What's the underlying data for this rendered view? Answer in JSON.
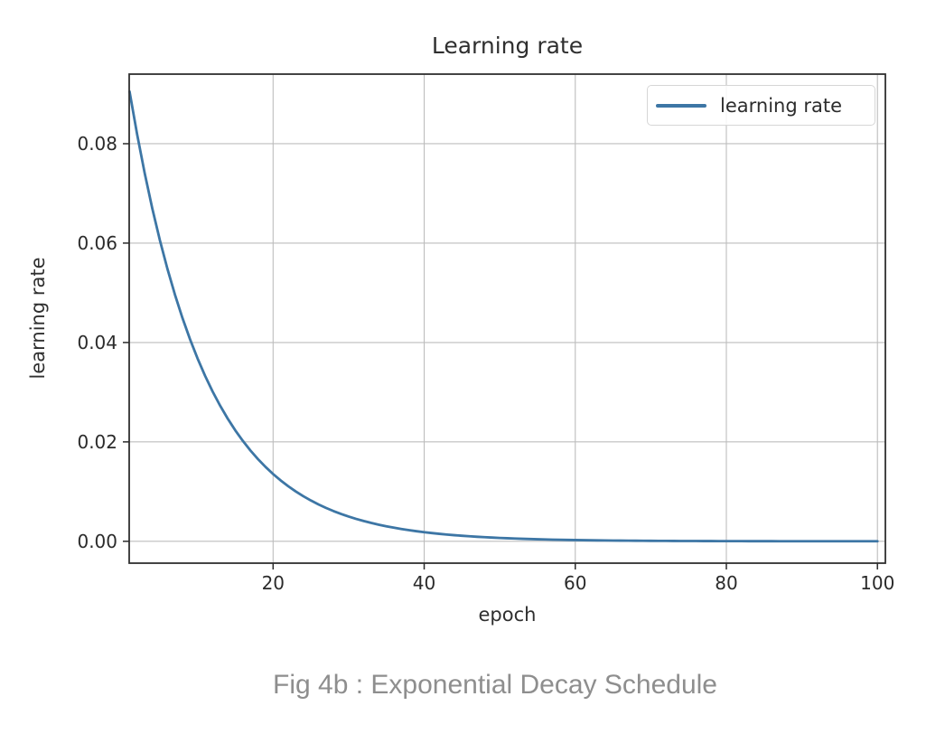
{
  "figure": {
    "title": "Learning rate",
    "xlabel": "epoch",
    "ylabel": "learning rate",
    "legend_label": "learning rate",
    "caption": "Fig 4b : Exponential Decay Schedule"
  },
  "colors": {
    "line": "#3d76a5",
    "grid": "#bdbdbd",
    "spine": "#303030",
    "tick": "#2b2b2b",
    "tick_label": "#2b2b2b",
    "caption": "#8e8e8e",
    "legend_border": "#d6d6d6",
    "background": "#ffffff"
  },
  "chart_data": {
    "type": "line",
    "title": "Learning rate",
    "xlabel": "epoch",
    "ylabel": "learning rate",
    "legend_entries": [
      "learning rate"
    ],
    "legend_position": "upper right",
    "grid": true,
    "xlim": [
      0.95,
      101.05
    ],
    "ylim": [
      -0.0044,
      0.094
    ],
    "xticks": [
      20,
      40,
      60,
      80,
      100
    ],
    "xtick_labels": [
      "20",
      "40",
      "60",
      "80",
      "100"
    ],
    "yticks": [
      0.0,
      0.02,
      0.04,
      0.06,
      0.08
    ],
    "ytick_labels": [
      "0.00",
      "0.02",
      "0.04",
      "0.06",
      "0.08"
    ],
    "series": [
      {
        "name": "learning rate",
        "x": [
          1,
          2,
          3,
          4,
          5,
          6,
          7,
          8,
          9,
          10,
          11,
          12,
          13,
          14,
          15,
          16,
          17,
          18,
          19,
          20,
          21,
          22,
          23,
          24,
          25,
          26,
          27,
          28,
          29,
          30,
          31,
          32,
          33,
          34,
          35,
          36,
          37,
          38,
          39,
          40,
          41,
          42,
          43,
          44,
          45,
          46,
          47,
          48,
          49,
          50,
          51,
          52,
          53,
          54,
          55,
          56,
          57,
          58,
          59,
          60,
          61,
          62,
          63,
          64,
          65,
          66,
          67,
          68,
          69,
          70,
          71,
          72,
          73,
          74,
          75,
          76,
          77,
          78,
          79,
          80,
          81,
          82,
          83,
          84,
          85,
          86,
          87,
          88,
          89,
          90,
          91,
          92,
          93,
          94,
          95,
          96,
          97,
          98,
          99,
          100
        ],
        "y": [
          0.090484,
          0.081873,
          0.074082,
          0.067032,
          0.060653,
          0.054881,
          0.049659,
          0.044933,
          0.040657,
          0.036788,
          0.033287,
          0.030119,
          0.027253,
          0.02466,
          0.022313,
          0.02019,
          0.018268,
          0.01653,
          0.014957,
          0.013534,
          0.012246,
          0.01108,
          0.010026,
          0.009072,
          0.008208,
          0.007427,
          0.006721,
          0.006081,
          0.005502,
          0.004979,
          0.004505,
          0.004076,
          0.003688,
          0.003337,
          0.00302,
          0.002732,
          0.002472,
          0.002237,
          0.002024,
          0.001832,
          0.001657,
          0.0015,
          0.001357,
          0.001228,
          0.001111,
          0.001005,
          0.00091,
          0.000823,
          0.000745,
          0.000674,
          0.00061,
          0.000552,
          0.000499,
          0.000452,
          0.000409,
          0.00037,
          0.000335,
          0.000303,
          0.000274,
          0.000248,
          0.000224,
          0.000203,
          0.000184,
          0.000166,
          0.00015,
          0.000136,
          0.000123,
          0.000111,
          0.000101,
          9.1e-05,
          8.3e-05,
          7.5e-05,
          6.8e-05,
          6.1e-05,
          5.5e-05,
          5e-05,
          4.5e-05,
          4.1e-05,
          3.7e-05,
          3.4e-05,
          3e-05,
          2.7e-05,
          2.5e-05,
          2.2e-05,
          2e-05,
          1.8e-05,
          1.7e-05,
          1.5e-05,
          1.4e-05,
          1.2e-05,
          1.1e-05,
          1e-05,
          9e-06,
          8e-06,
          8e-06,
          7e-06,
          6e-06,
          6e-06,
          5e-06,
          5e-06
        ]
      }
    ]
  }
}
